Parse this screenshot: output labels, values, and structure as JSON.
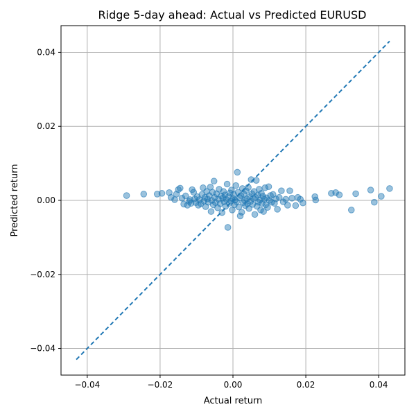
{
  "chart_data": {
    "type": "scatter",
    "title": "Ridge 5-day ahead: Actual vs Predicted EURUSD",
    "xlabel": "Actual return",
    "ylabel": "Predicted return",
    "xlim": [
      -0.0472,
      0.0472
    ],
    "ylim": [
      -0.0472,
      0.0472
    ],
    "xticks": [
      -0.04,
      -0.02,
      0.0,
      0.02,
      0.04
    ],
    "xtick_labels": [
      "−0.04",
      "−0.02",
      "0.00",
      "0.02",
      "0.04"
    ],
    "yticks": [
      -0.04,
      -0.02,
      0.0,
      0.02,
      0.04
    ],
    "ytick_labels": [
      "−0.04",
      "−0.02",
      "0.00",
      "0.02",
      "0.04"
    ],
    "grid": true,
    "point_color": "#1f77b4",
    "line_color": "#1f77b4",
    "reference_line": {
      "style": "dashed",
      "x": [
        -0.043,
        0.043
      ],
      "y": [
        -0.043,
        0.043
      ]
    },
    "points": [
      [
        -0.0292,
        0.0013
      ],
      [
        -0.0245,
        0.0017
      ],
      [
        -0.0208,
        0.0017
      ],
      [
        -0.0195,
        0.0019
      ],
      [
        -0.0175,
        0.0021
      ],
      [
        -0.017,
        0.0008
      ],
      [
        -0.016,
        0.0002
      ],
      [
        -0.0155,
        0.0017
      ],
      [
        -0.015,
        0.0029
      ],
      [
        -0.0145,
        0.0033
      ],
      [
        -0.014,
        0.0006
      ],
      [
        -0.0135,
        -0.001
      ],
      [
        -0.013,
        0.0012
      ],
      [
        -0.0125,
        -0.0013
      ],
      [
        -0.012,
        -0.0003
      ],
      [
        -0.0118,
        0.0002
      ],
      [
        -0.0115,
        -0.0008
      ],
      [
        -0.0112,
        0.0029
      ],
      [
        -0.0108,
        0.0022
      ],
      [
        -0.0105,
        0.0004
      ],
      [
        -0.0102,
        -0.0006
      ],
      [
        -0.0098,
        0.001
      ],
      [
        -0.0095,
        -0.0013
      ],
      [
        -0.0092,
        0.0002
      ],
      [
        -0.0088,
        -0.0009
      ],
      [
        -0.0085,
        0.0016
      ],
      [
        -0.0082,
        0.0034
      ],
      [
        -0.008,
        -0.0002
      ],
      [
        -0.0077,
        0.0008
      ],
      [
        -0.0075,
        -0.0017
      ],
      [
        -0.0072,
        0.0024
      ],
      [
        -0.007,
        0.0004
      ],
      [
        -0.0068,
        -0.0005
      ],
      [
        -0.0065,
        0.0013
      ],
      [
        -0.0062,
        0.0036
      ],
      [
        -0.006,
        -0.003
      ],
      [
        -0.0058,
        0.0
      ],
      [
        -0.0056,
        0.0022
      ],
      [
        -0.0054,
        -0.0012
      ],
      [
        -0.0052,
        0.0052
      ],
      [
        -0.005,
        0.0008
      ],
      [
        -0.0048,
        -0.0006
      ],
      [
        -0.0045,
        0.0018
      ],
      [
        -0.0042,
        -0.002
      ],
      [
        -0.004,
        0.0003
      ],
      [
        -0.0038,
        0.003
      ],
      [
        -0.0035,
        -0.0009
      ],
      [
        -0.0032,
        0.0012
      ],
      [
        -0.003,
        -0.0033
      ],
      [
        -0.0028,
        0.0006
      ],
      [
        -0.0026,
        0.0024
      ],
      [
        -0.0024,
        -0.0004
      ],
      [
        -0.0022,
        0.0015
      ],
      [
        -0.002,
        -0.0016
      ],
      [
        -0.0018,
        0.0002
      ],
      [
        -0.0016,
        0.0044
      ],
      [
        -0.0014,
        -0.0073
      ],
      [
        -0.0012,
        0.001
      ],
      [
        -0.001,
        -0.0008
      ],
      [
        -0.0008,
        0.002
      ],
      [
        -0.0006,
        -0.0002
      ],
      [
        -0.0004,
        0.0028
      ],
      [
        -0.0002,
        -0.0026
      ],
      [
        0.0,
        0.0005
      ],
      [
        0.0002,
        0.0016
      ],
      [
        0.0004,
        -0.0012
      ],
      [
        0.0006,
        0.0001
      ],
      [
        0.0008,
        0.004
      ],
      [
        0.001,
        -0.0004
      ],
      [
        0.0012,
        0.0076
      ],
      [
        0.0014,
        0.0022
      ],
      [
        0.0016,
        -0.0018
      ],
      [
        0.0018,
        0.0007
      ],
      [
        0.002,
        -0.0042
      ],
      [
        0.0022,
        0.0013
      ],
      [
        0.0024,
        -0.0032
      ],
      [
        0.0026,
        0.0032
      ],
      [
        0.0028,
        -0.0006
      ],
      [
        0.003,
        0.0017
      ],
      [
        0.0032,
        0.0
      ],
      [
        0.0034,
        -0.0014
      ],
      [
        0.0036,
        0.0026
      ],
      [
        0.0038,
        0.0004
      ],
      [
        0.004,
        -0.0009
      ],
      [
        0.0042,
        0.0035
      ],
      [
        0.0044,
        -0.0022
      ],
      [
        0.0046,
        0.001
      ],
      [
        0.0048,
        -0.0003
      ],
      [
        0.005,
        0.0056
      ],
      [
        0.0052,
        0.0018
      ],
      [
        0.0054,
        -0.0011
      ],
      [
        0.0056,
        0.0005
      ],
      [
        0.0058,
        0.0024
      ],
      [
        0.006,
        -0.0038
      ],
      [
        0.0062,
        0.0008
      ],
      [
        0.0064,
        0.0054
      ],
      [
        0.0066,
        -0.0016
      ],
      [
        0.0068,
        0.0014
      ],
      [
        0.007,
        -0.0005
      ],
      [
        0.0072,
        0.003
      ],
      [
        0.0074,
        0.0001
      ],
      [
        0.0076,
        -0.0026
      ],
      [
        0.0078,
        0.0019
      ],
      [
        0.008,
        -0.0008
      ],
      [
        0.0082,
        0.0011
      ],
      [
        0.0084,
        -0.003
      ],
      [
        0.0086,
        0.0003
      ],
      [
        0.0088,
        0.0034
      ],
      [
        0.009,
        -0.0012
      ],
      [
        0.0092,
        0.0007
      ],
      [
        0.0095,
        -0.0019
      ],
      [
        0.0098,
        0.0037
      ],
      [
        0.01,
        0.0
      ],
      [
        0.0103,
        0.0013
      ],
      [
        0.0106,
        -0.0005
      ],
      [
        0.011,
        0.0016
      ],
      [
        0.0114,
        -0.0008
      ],
      [
        0.0118,
        0.0004
      ],
      [
        0.0122,
        -0.0024
      ],
      [
        0.0127,
        0.0008
      ],
      [
        0.0133,
        0.0026
      ],
      [
        0.0138,
        -0.0004
      ],
      [
        0.0145,
        0.0003
      ],
      [
        0.015,
        -0.0013
      ],
      [
        0.0156,
        0.0026
      ],
      [
        0.0162,
        0.0006
      ],
      [
        0.0172,
        -0.0014
      ],
      [
        0.0178,
        0.0008
      ],
      [
        0.0185,
        0.0003
      ],
      [
        0.0192,
        -0.0007
      ],
      [
        0.0225,
        0.001
      ],
      [
        0.0227,
        0.0001
      ],
      [
        0.027,
        0.0019
      ],
      [
        0.0282,
        0.0021
      ],
      [
        0.0292,
        0.0015
      ],
      [
        0.0325,
        -0.0026
      ],
      [
        0.0337,
        0.0018
      ],
      [
        0.0378,
        0.0028
      ],
      [
        0.0388,
        -0.0005
      ],
      [
        0.0407,
        0.0011
      ],
      [
        0.043,
        0.0032
      ]
    ]
  }
}
